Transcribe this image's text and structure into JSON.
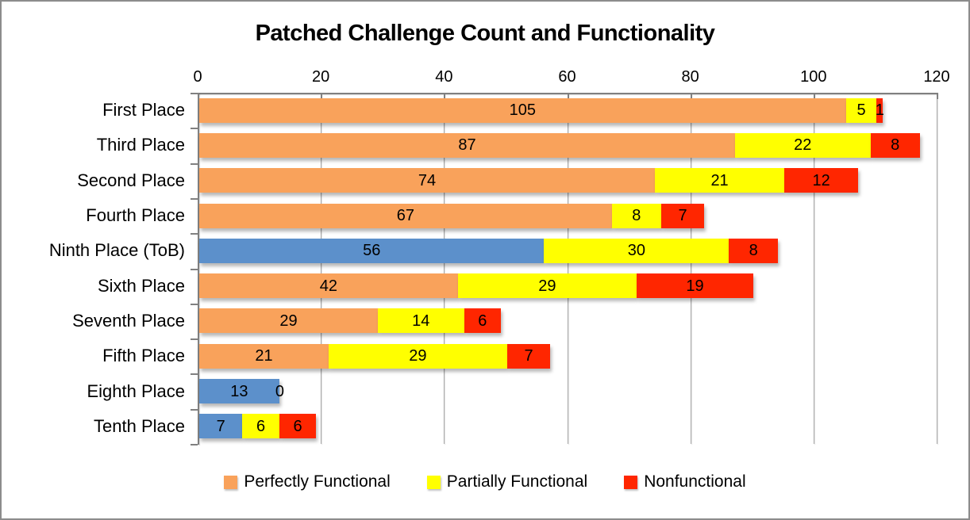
{
  "colors": {
    "orange": "#F9A25B",
    "yellow": "#FFFF00",
    "red": "#FF2600",
    "blue": "#5C90CB",
    "axis": "#808080",
    "gridline": "#A6A6A6",
    "text": "#000000"
  },
  "chart_data": {
    "type": "bar",
    "orientation": "horizontal",
    "stacked": true,
    "title": "Patched Challenge Count and Functionality",
    "axis": {
      "position": "top",
      "min": 0,
      "max": 120,
      "tick_interval": 20,
      "ticks": [
        0,
        20,
        40,
        60,
        80,
        100,
        120
      ]
    },
    "grid": true,
    "legend_position": "bottom",
    "categories": [
      "First Place",
      "Third Place",
      "Second Place",
      "Fourth Place",
      "Ninth Place (ToB)",
      "Sixth Place",
      "Seventh Place",
      "Fifth Place",
      "Eighth Place",
      "Tenth Place"
    ],
    "series": [
      {
        "name": "Perfectly Functional",
        "color_key": "orange",
        "values": [
          105,
          87,
          74,
          67,
          56,
          42,
          29,
          21,
          13,
          7
        ]
      },
      {
        "name": "Partially Functional",
        "color_key": "yellow",
        "values": [
          5,
          22,
          21,
          8,
          30,
          29,
          14,
          29,
          0,
          6
        ]
      },
      {
        "name": "Nonfunctional",
        "color_key": "red",
        "values": [
          1,
          8,
          12,
          7,
          8,
          19,
          6,
          7,
          0,
          6
        ]
      }
    ],
    "blue_bar_categories": [
      "Ninth Place (ToB)",
      "Eighth Place",
      "Tenth Place"
    ],
    "rows": [
      {
        "category": "First Place",
        "segments": [
          {
            "value": 105,
            "color_key": "orange"
          },
          {
            "value": 5,
            "color_key": "yellow"
          },
          {
            "value": 1,
            "color_key": "red"
          }
        ]
      },
      {
        "category": "Third Place",
        "segments": [
          {
            "value": 87,
            "color_key": "orange"
          },
          {
            "value": 22,
            "color_key": "yellow"
          },
          {
            "value": 8,
            "color_key": "red"
          }
        ]
      },
      {
        "category": "Second Place",
        "segments": [
          {
            "value": 74,
            "color_key": "orange"
          },
          {
            "value": 21,
            "color_key": "yellow"
          },
          {
            "value": 12,
            "color_key": "red"
          }
        ]
      },
      {
        "category": "Fourth Place",
        "segments": [
          {
            "value": 67,
            "color_key": "orange"
          },
          {
            "value": 8,
            "color_key": "yellow"
          },
          {
            "value": 7,
            "color_key": "red"
          }
        ]
      },
      {
        "category": "Ninth Place (ToB)",
        "segments": [
          {
            "value": 56,
            "color_key": "blue"
          },
          {
            "value": 30,
            "color_key": "yellow"
          },
          {
            "value": 8,
            "color_key": "red"
          }
        ]
      },
      {
        "category": "Sixth Place",
        "segments": [
          {
            "value": 42,
            "color_key": "orange"
          },
          {
            "value": 29,
            "color_key": "yellow"
          },
          {
            "value": 19,
            "color_key": "red"
          }
        ]
      },
      {
        "category": "Seventh Place",
        "segments": [
          {
            "value": 29,
            "color_key": "orange"
          },
          {
            "value": 14,
            "color_key": "yellow"
          },
          {
            "value": 6,
            "color_key": "red"
          }
        ]
      },
      {
        "category": "Fifth Place",
        "segments": [
          {
            "value": 21,
            "color_key": "orange"
          },
          {
            "value": 29,
            "color_key": "yellow"
          },
          {
            "value": 7,
            "color_key": "red"
          }
        ]
      },
      {
        "category": "Eighth Place",
        "segments": [
          {
            "value": 13,
            "color_key": "blue"
          },
          {
            "value": 0,
            "color_key": "yellow",
            "label_placement": "outside"
          }
        ]
      },
      {
        "category": "Tenth Place",
        "segments": [
          {
            "value": 7,
            "color_key": "blue"
          },
          {
            "value": 6,
            "color_key": "yellow"
          },
          {
            "value": 6,
            "color_key": "red"
          }
        ]
      }
    ]
  },
  "legend": {
    "items": [
      {
        "label": "Perfectly Functional",
        "color_key": "orange"
      },
      {
        "label": "Partially Functional",
        "color_key": "yellow"
      },
      {
        "label": "Nonfunctional",
        "color_key": "red"
      }
    ]
  }
}
